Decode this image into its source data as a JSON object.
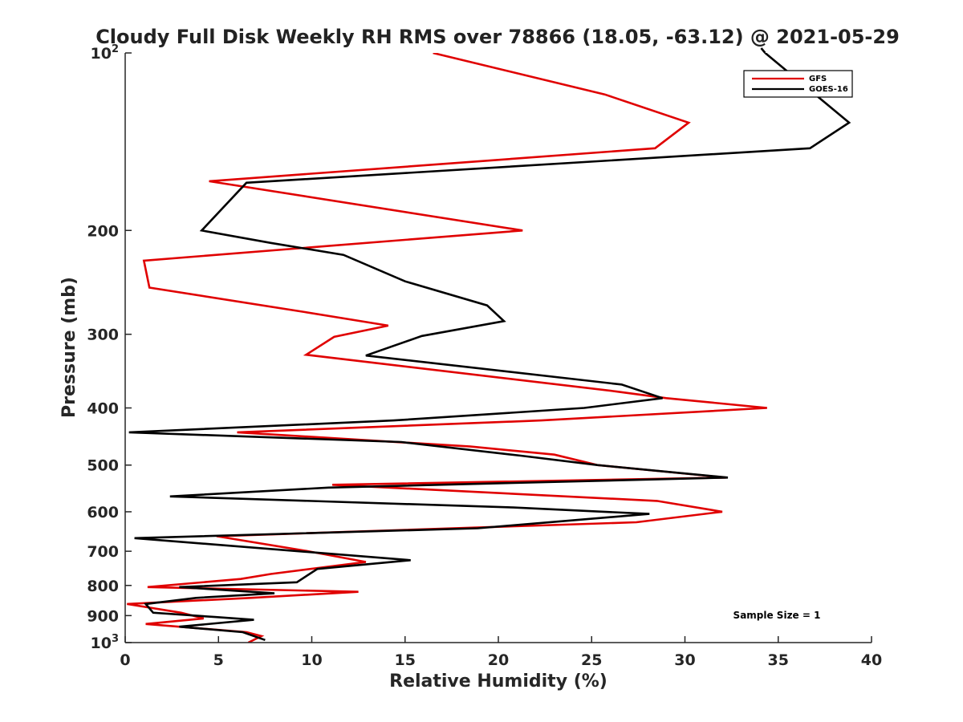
{
  "chart_data": {
    "type": "line",
    "title": "Cloudy Full Disk Weekly RH RMS over 78866 (18.05, -63.12) @ 2021-05-29",
    "xlabel": "Relative Humidity (%)",
    "ylabel": "Pressure (mb)",
    "xlim": [
      0,
      40
    ],
    "ylim": [
      100,
      1000
    ],
    "yscale": "log",
    "y_reversed": true,
    "grid": false,
    "x_ticks": [
      0,
      5,
      10,
      15,
      20,
      25,
      30,
      35,
      40
    ],
    "x_tick_labels": [
      "0",
      "5",
      "10",
      "15",
      "20",
      "25",
      "30",
      "35",
      "40"
    ],
    "y_ticks": [
      {
        "value": 100,
        "base": "10",
        "exp": "2"
      },
      {
        "value": 200,
        "label": "200"
      },
      {
        "value": 300,
        "label": "300"
      },
      {
        "value": 400,
        "label": "400"
      },
      {
        "value": 500,
        "label": "500"
      },
      {
        "value": 600,
        "label": "600"
      },
      {
        "value": 700,
        "label": "700"
      },
      {
        "value": 800,
        "label": "800"
      },
      {
        "value": 900,
        "label": "900"
      },
      {
        "value": 1000,
        "base": "10",
        "exp": "3"
      }
    ],
    "legend_position": "top-right",
    "annotation": "Sample Size = 1",
    "series": [
      {
        "name": "GFS",
        "color": "#e00000",
        "points": [
          [
            16.5,
            100
          ],
          [
            25.7,
            117.6
          ],
          [
            30.2,
            131.3
          ],
          [
            28.4,
            145.1
          ],
          [
            4.5,
            165
          ],
          [
            21.3,
            200
          ],
          [
            1.0,
            225
          ],
          [
            1.3,
            250
          ],
          [
            9.6,
            275
          ],
          [
            14.1,
            290
          ],
          [
            11.2,
            303
          ],
          [
            9.7,
            325
          ],
          [
            26.3,
            375
          ],
          [
            29.0,
            385
          ],
          [
            34.4,
            400
          ],
          [
            22.3,
            420
          ],
          [
            6.0,
            440
          ],
          [
            18.5,
            465
          ],
          [
            23.0,
            480
          ],
          [
            25.3,
            500
          ],
          [
            32.2,
            525
          ],
          [
            11.1,
            540
          ],
          [
            28.5,
            575
          ],
          [
            32.0,
            600
          ],
          [
            27.4,
            625
          ],
          [
            4.9,
            660
          ],
          [
            9.8,
            700
          ],
          [
            12.9,
            730
          ],
          [
            7.8,
            765
          ],
          [
            6.2,
            780
          ],
          [
            1.2,
            805
          ],
          [
            12.5,
            820
          ],
          [
            6.7,
            840
          ],
          [
            0.1,
            860
          ],
          [
            3.0,
            890
          ],
          [
            4.2,
            910
          ],
          [
            1.1,
            930
          ],
          [
            6.5,
            960
          ],
          [
            7.3,
            975
          ],
          [
            6.6,
            1000
          ]
        ]
      },
      {
        "name": "GOES-16",
        "color": "#000000",
        "points": [
          [
            34.3,
            100
          ],
          [
            38.8,
            131.3
          ],
          [
            36.7,
            145.1
          ],
          [
            6.5,
            166
          ],
          [
            4.1,
            200
          ],
          [
            7.8,
            210
          ],
          [
            11.7,
            220
          ],
          [
            15.0,
            244
          ],
          [
            19.4,
            268
          ],
          [
            20.3,
            285
          ],
          [
            15.9,
            302
          ],
          [
            12.9,
            326
          ],
          [
            26.6,
            365
          ],
          [
            28.8,
            385
          ],
          [
            24.6,
            400
          ],
          [
            14.4,
            420
          ],
          [
            0.2,
            440
          ],
          [
            14.8,
            457
          ],
          [
            21.2,
            482
          ],
          [
            25.3,
            500
          ],
          [
            32.3,
            525
          ],
          [
            10.9,
            546
          ],
          [
            2.4,
            565
          ],
          [
            20.8,
            590
          ],
          [
            28.1,
            605
          ],
          [
            18.9,
            640
          ],
          [
            0.5,
            665
          ],
          [
            15.3,
            725
          ],
          [
            10.3,
            750
          ],
          [
            9.2,
            790
          ],
          [
            2.9,
            805
          ],
          [
            8.0,
            825
          ],
          [
            3.8,
            840
          ],
          [
            1.1,
            860
          ],
          [
            1.5,
            890
          ],
          [
            4.8,
            905
          ],
          [
            6.9,
            915
          ],
          [
            2.9,
            940
          ],
          [
            6.3,
            960
          ],
          [
            7.5,
            990
          ]
        ]
      }
    ]
  }
}
